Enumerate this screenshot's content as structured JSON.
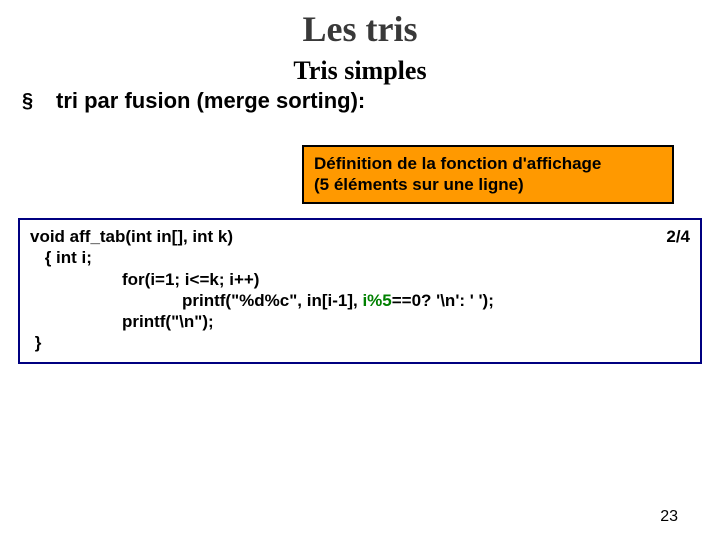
{
  "title": "Les tris",
  "subtitle": "Tris simples",
  "bullet": {
    "marker": "§",
    "text": "tri par fusion (merge sorting):"
  },
  "callout": {
    "line1": "Définition de la fonction d'affichage",
    "line2": "(5 éléments sur une ligne)",
    "bg": "#ff9900",
    "border": "#000000"
  },
  "code": {
    "border_color": "#000080",
    "page_indicator": "2/4",
    "lines": {
      "l1": "void aff_tab(int in[], int k)",
      "l2": " { int i;",
      "l3": "for(i=1; i<=k; i++)",
      "l4_a": "printf(\"%d%c\", in[i-1], ",
      "l4_b": "i%5",
      "l4_c": "==0? '\\n': ' ');",
      "l5": "printf(\"\\n\");",
      "l6": " }"
    }
  },
  "colors": {
    "highlight_green": "#008000",
    "highlight_red": "#c00000",
    "title_color": "#393939"
  },
  "pagenum": "23"
}
